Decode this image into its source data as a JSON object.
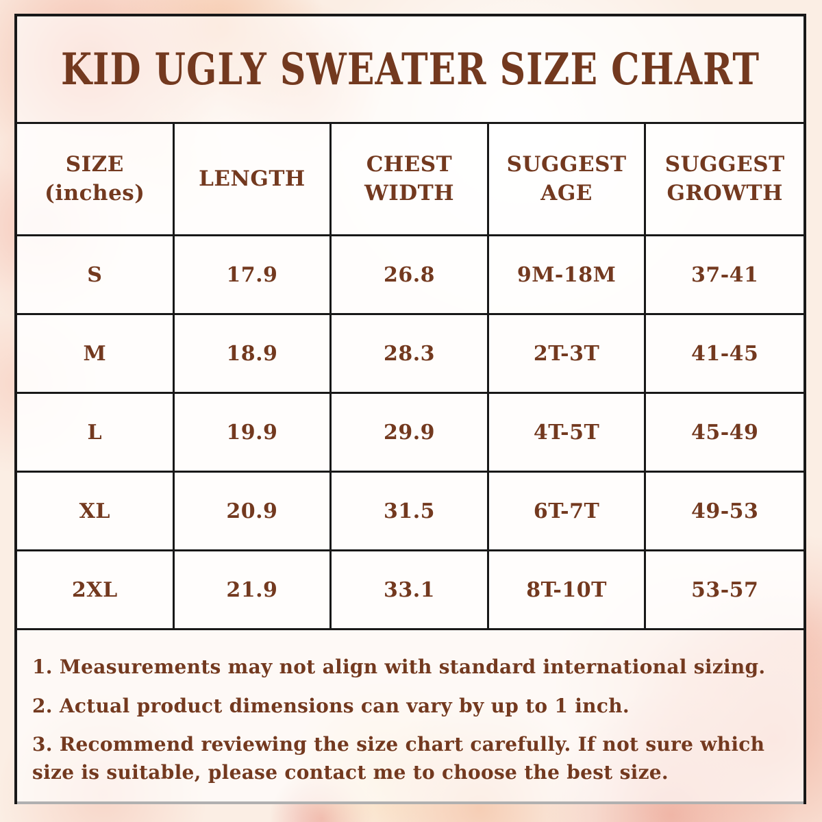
{
  "title": "KID UGLY SWEATER SIZE CHART",
  "table": {
    "headers": [
      "SIZE\n(inches)",
      "LENGTH",
      "CHEST\nWIDTH",
      "SUGGEST\nAGE",
      "SUGGEST\nGROWTH"
    ]
  },
  "chart_data": {
    "type": "table",
    "title": "KID UGLY SWEATER SIZE CHART",
    "unit": "inches",
    "columns": [
      "SIZE (inches)",
      "LENGTH",
      "CHEST WIDTH",
      "SUGGEST AGE",
      "SUGGEST GROWTH"
    ],
    "rows": [
      [
        "S",
        "17.9",
        "26.8",
        "9M-18M",
        "37-41"
      ],
      [
        "M",
        "18.9",
        "28.3",
        "2T-3T",
        "41-45"
      ],
      [
        "L",
        "19.9",
        "29.9",
        "4T-5T",
        "45-49"
      ],
      [
        "XL",
        "20.9",
        "31.5",
        "6T-7T",
        "49-53"
      ],
      [
        "2XL",
        "21.9",
        "33.1",
        "8T-10T",
        "53-57"
      ]
    ]
  },
  "notes": [
    "1. Measurements may not align with standard international sizing.",
    "2. Actual product dimensions can vary by up to 1 inch.",
    "3. Recommend reviewing the size chart carefully. If not sure which size is suitable, please contact me to choose the best size."
  ],
  "colors": {
    "text_brown": "#73391F",
    "border_black": "#181818",
    "watercolor_pink": "#F4B9A6",
    "watercolor_peach": "#F6C7AA",
    "watercolor_cream": "#FAE3C8"
  }
}
